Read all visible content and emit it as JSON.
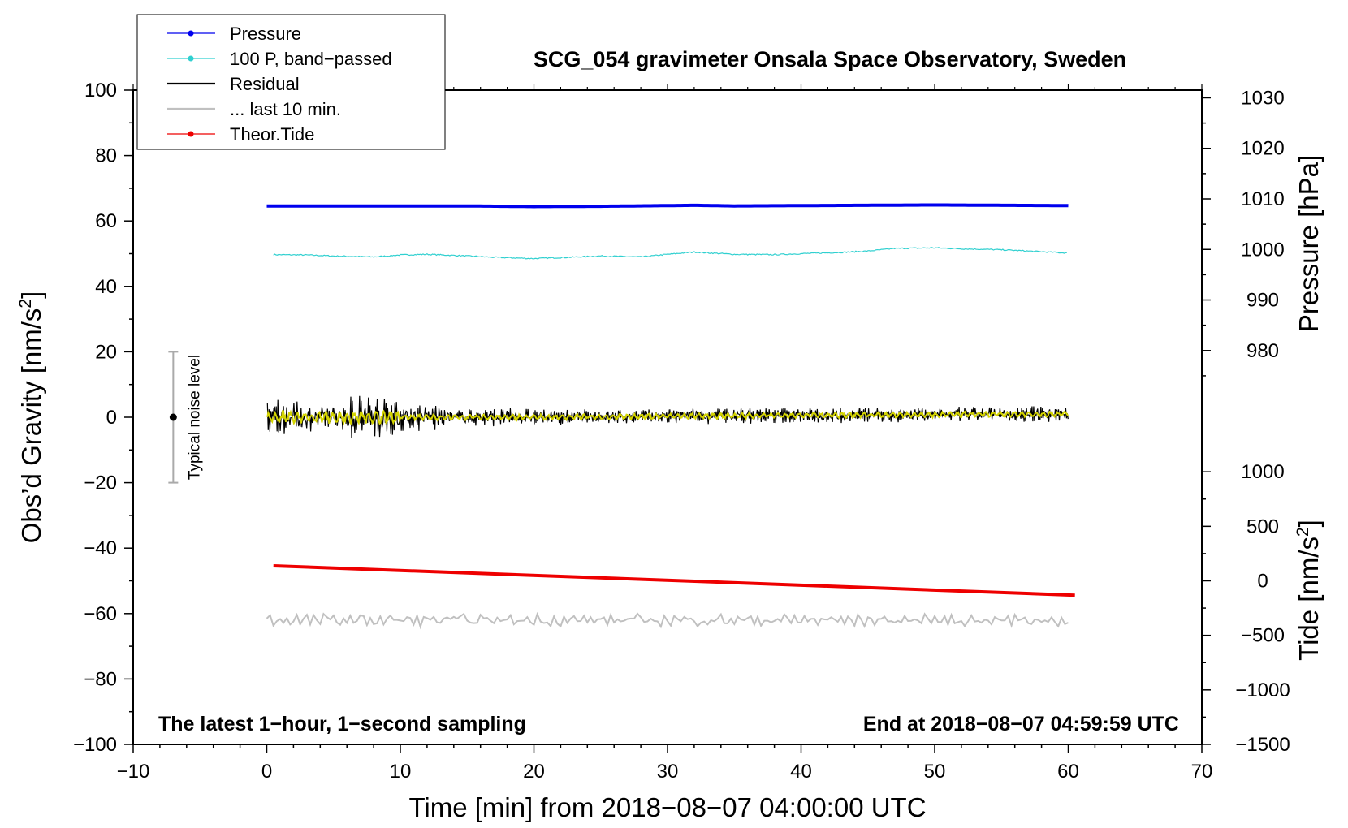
{
  "chart_data": {
    "type": "line",
    "title": "SCG_054 gravimeter Onsala Space Observatory, Sweden",
    "xlabel": "Time [min] from 2018−08−07 04:00:00 UTC",
    "ylabel": "Obs’d Gravity [nm/s²]",
    "ylabel_main": "Obs’d Gravity [nm/s",
    "ylabel_sup": "2",
    "ylabel_end": "]",
    "xlim": [
      -10,
      70
    ],
    "ylim": [
      -100,
      100
    ],
    "x_ticks": [
      -10,
      0,
      10,
      20,
      30,
      40,
      50,
      60,
      70
    ],
    "x_tick_labels": [
      "−10",
      "0",
      "10",
      "20",
      "30",
      "40",
      "50",
      "60",
      "70"
    ],
    "y_ticks": [
      -100,
      -80,
      -60,
      -40,
      -20,
      0,
      20,
      40,
      60,
      80,
      100
    ],
    "y_tick_labels": [
      "−100",
      "−80",
      "−60",
      "−40",
      "−20",
      "0",
      "20",
      "40",
      "60",
      "80",
      "100"
    ],
    "pressure_axis": {
      "label": "Pressure [hPa]",
      "ticks": [
        980,
        990,
        1000,
        1010,
        1020,
        1030
      ],
      "tick_labels": [
        "980",
        "990",
        "1000",
        "1010",
        "1020",
        "1030"
      ],
      "gravity_at_980": 20.4,
      "gravity_per_hpa": 1.545
    },
    "tide_axis": {
      "label_main": "Tide [nm/s",
      "label_sup": "2",
      "label_end": "]",
      "ticks": [
        -1500,
        -1000,
        -500,
        0,
        500,
        1000
      ],
      "tick_labels": [
        "−1500",
        "−1000",
        "−500",
        "0",
        "500",
        "1000"
      ],
      "gravity_at_0": -50,
      "gravity_per_unit": 0.03333
    },
    "series": [
      {
        "name": "Pressure",
        "color": "#0000ee",
        "x": [
          0,
          5,
          10,
          15,
          20,
          25,
          30,
          32,
          35,
          40,
          45,
          50,
          55,
          60
        ],
        "values": [
          64.6,
          64.6,
          64.6,
          64.6,
          64.4,
          64.5,
          64.7,
          64.8,
          64.6,
          64.7,
          64.8,
          64.9,
          64.8,
          64.7
        ]
      },
      {
        "name": "100 P, band−passed",
        "color": "#30d0d0",
        "x": [
          0.5,
          3,
          5,
          8,
          10,
          12,
          15,
          17,
          20,
          22,
          25,
          28,
          30,
          32,
          35,
          38,
          40,
          43,
          45,
          47,
          50,
          52,
          55,
          58,
          60
        ],
        "values": [
          49.7,
          49.6,
          49.3,
          49.0,
          49.6,
          49.8,
          49.3,
          48.9,
          48.5,
          48.8,
          49.3,
          49.0,
          49.8,
          50.5,
          49.8,
          49.7,
          50.0,
          50.4,
          50.8,
          51.6,
          51.8,
          51.5,
          51.2,
          50.6,
          50.2
        ]
      },
      {
        "name": "Residual",
        "color": "#000000",
        "x": [
          0,
          10,
          20,
          30,
          40,
          50,
          60
        ],
        "values": [
          0,
          0,
          0,
          0.3,
          0.6,
          0.8,
          1.0
        ]
      },
      {
        "name": "... last 10 min.",
        "color": "#c0c0c0",
        "x": [
          0,
          60
        ],
        "values": [
          -62,
          -62
        ]
      },
      {
        "name": "Theor.Tide",
        "color": "#ee0000",
        "x": [
          0.5,
          60.5
        ],
        "values": [
          -45.4,
          -54.4
        ]
      }
    ],
    "legend": {
      "position": "top-left",
      "entries": [
        {
          "label": "Pressure",
          "color": "#0000ee",
          "marker": true
        },
        {
          "label": "100 P, band−passed",
          "color": "#30d0d0",
          "marker": true
        },
        {
          "label": "Residual",
          "color": "#000000",
          "marker": false
        },
        {
          "label": "... last 10 min.",
          "color": "#c0c0c0",
          "marker": false
        },
        {
          "label": "Theor.Tide",
          "color": "#ee0000",
          "marker": true
        }
      ]
    },
    "noise_bar": {
      "label": "Typical noise level",
      "x": -7,
      "center": 0,
      "low": -20,
      "high": 20
    },
    "annotations": {
      "bottom_left": "The latest 1−hour, 1−second sampling",
      "bottom_right": "End at 2018−08−07 04:59:59 UTC"
    }
  }
}
